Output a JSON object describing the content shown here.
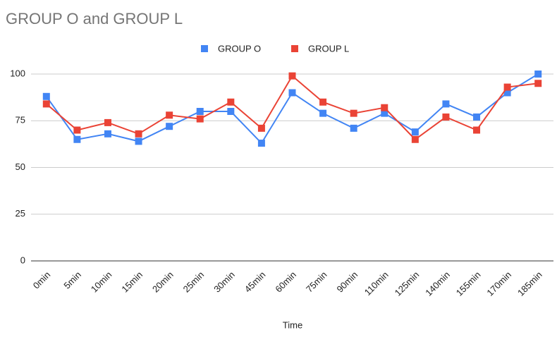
{
  "chart_data": {
    "type": "line",
    "title": "GROUP O and GROUP L",
    "x_label": "Time",
    "categories": [
      "0min",
      "5min",
      "10min",
      "15min",
      "20min",
      "25min",
      "30min",
      "45min",
      "60min",
      "75min",
      "90min",
      "110min",
      "125min",
      "140min",
      "155min",
      "170min",
      "185min"
    ],
    "series": [
      {
        "name": "GROUP O",
        "color": "#4285f4",
        "values": [
          88,
          65,
          68,
          64,
          72,
          80,
          80,
          63,
          90,
          79,
          71,
          79,
          69,
          84,
          77,
          90,
          100
        ]
      },
      {
        "name": "GROUP L",
        "color": "#ea4335",
        "values": [
          84,
          70,
          74,
          68,
          78,
          76,
          85,
          71,
          99,
          85,
          79,
          82,
          65,
          77,
          70,
          93,
          95
        ]
      }
    ],
    "ylim": [
      0,
      100
    ],
    "yticks": [
      0,
      25,
      50,
      75,
      100
    ],
    "grid": true,
    "legend": "top"
  }
}
